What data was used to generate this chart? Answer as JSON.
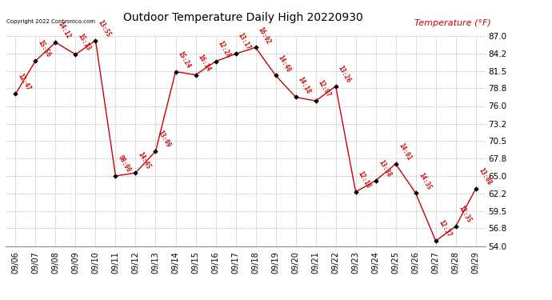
{
  "title": "Outdoor Temperature Daily High 20220930",
  "ylabel": "Temperature (°F)",
  "copyright": "Copyright 2022 Contronico.com",
  "background_color": "#ffffff",
  "line_color": "#cc0000",
  "text_color": "#cc0000",
  "dates": [
    "09/06",
    "09/07",
    "09/08",
    "09/09",
    "09/10",
    "09/11",
    "09/12",
    "09/13",
    "09/14",
    "09/15",
    "09/16",
    "09/17",
    "09/18",
    "09/19",
    "09/20",
    "09/21",
    "09/22",
    "09/23",
    "09/24",
    "09/25",
    "09/26",
    "09/27",
    "09/28",
    "09/29"
  ],
  "temps": [
    77.9,
    83.1,
    86.0,
    84.1,
    86.3,
    65.0,
    65.5,
    68.9,
    81.4,
    80.9,
    83.0,
    84.2,
    85.2,
    80.8,
    77.4,
    76.8,
    79.1,
    62.5,
    64.3,
    66.9,
    62.3,
    54.8,
    57.1,
    63.0
  ],
  "labels": [
    "12:47",
    "15:56",
    "14:12",
    "15:13",
    "13:55",
    "08:00",
    "14:45",
    "13:09",
    "15:24",
    "16:14",
    "12:28",
    "13:17",
    "16:02",
    "14:40",
    "14:18",
    "12:07",
    "13:26",
    "12:18",
    "13:38",
    "14:01",
    "14:35",
    "12:37",
    "12:35",
    "13:08"
  ],
  "ylim_min": 54.0,
  "ylim_max": 87.0,
  "yticks": [
    54.0,
    56.8,
    59.5,
    62.2,
    65.0,
    67.8,
    70.5,
    73.2,
    76.0,
    78.8,
    81.5,
    84.2,
    87.0
  ]
}
